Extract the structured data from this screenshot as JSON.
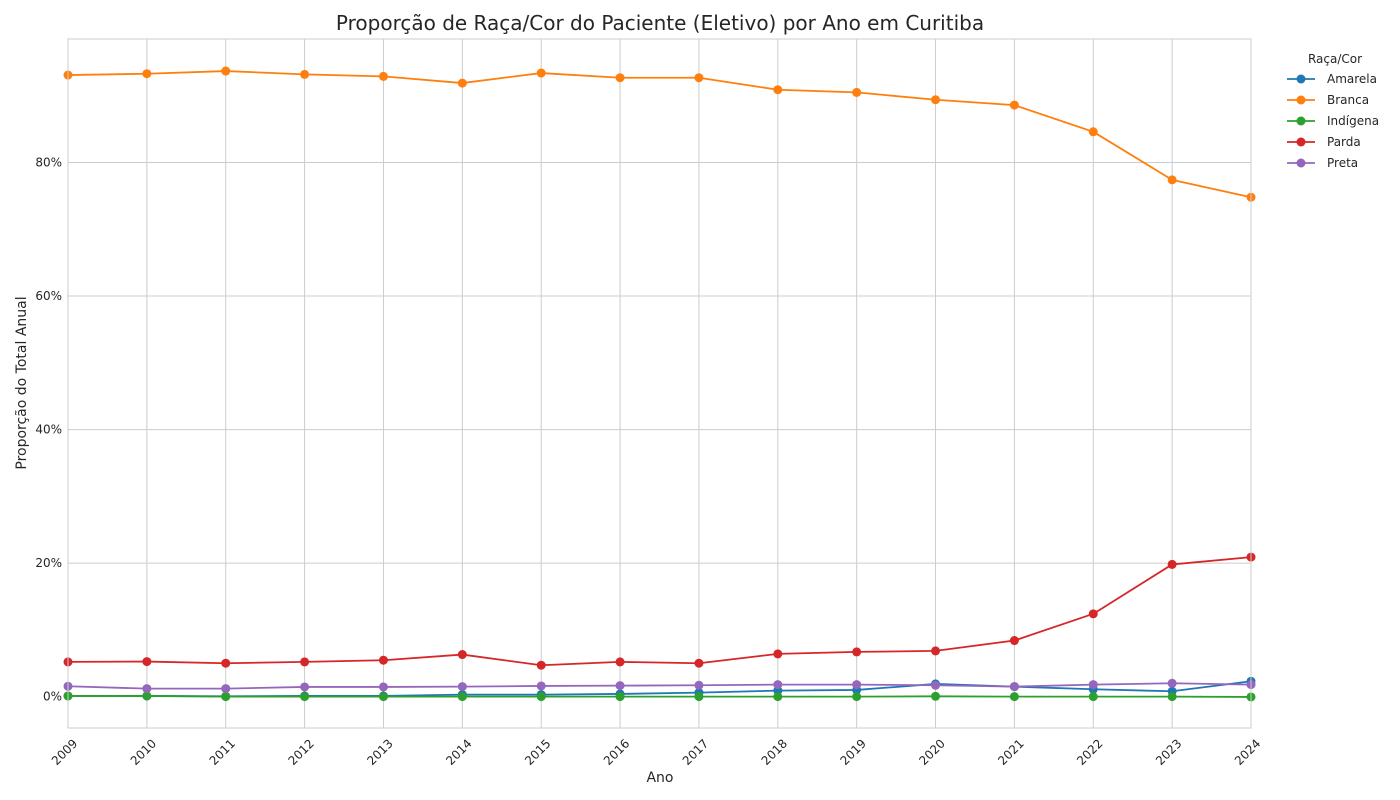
{
  "chart_data": {
    "type": "line",
    "title": "Proporção de Raça/Cor do Paciente (Eletivo) por Ano em Curitiba",
    "xlabel": "Ano",
    "ylabel": "Proporção do Total Anual",
    "x": [
      2009,
      2010,
      2011,
      2012,
      2013,
      2014,
      2015,
      2016,
      2017,
      2018,
      2019,
      2020,
      2021,
      2022,
      2023,
      2024
    ],
    "xlim": [
      2009,
      2024
    ],
    "ylim": [
      -4.7,
      98.5
    ],
    "yticks": [
      0,
      20,
      40,
      60,
      80
    ],
    "ytick_labels": [
      "0%",
      "20%",
      "40%",
      "60%",
      "80%"
    ],
    "grid": true,
    "legend": {
      "title": "Raça/Cor",
      "placement": "outside-top-right"
    },
    "series": [
      {
        "name": "Amarela",
        "color": "#1f77b4",
        "values": [
          0.1,
          0.1,
          0.05,
          0.1,
          0.1,
          0.3,
          0.3,
          0.4,
          0.6,
          0.9,
          1.0,
          1.9,
          1.5,
          1.1,
          0.8,
          2.3
        ]
      },
      {
        "name": "Branca",
        "color": "#ff7f0e",
        "values": [
          93.1,
          93.3,
          93.7,
          93.2,
          92.9,
          91.9,
          93.4,
          92.7,
          92.7,
          90.9,
          90.5,
          89.4,
          88.6,
          84.6,
          77.4,
          74.8
        ]
      },
      {
        "name": "Indígena",
        "color": "#2ca02c",
        "values": [
          0.1,
          0.1,
          0.0,
          0.0,
          0.0,
          0.0,
          0.0,
          0.0,
          0.0,
          0.0,
          0.0,
          0.05,
          0.0,
          0.0,
          0.0,
          -0.05
        ]
      },
      {
        "name": "Parda",
        "color": "#d62728",
        "values": [
          5.2,
          5.25,
          5.0,
          5.2,
          5.45,
          6.3,
          4.7,
          5.2,
          5.0,
          6.4,
          6.7,
          6.85,
          8.4,
          12.4,
          19.8,
          20.9
        ]
      },
      {
        "name": "Preta",
        "color": "#9467bd",
        "values": [
          1.55,
          1.2,
          1.2,
          1.45,
          1.45,
          1.5,
          1.6,
          1.65,
          1.7,
          1.8,
          1.8,
          1.7,
          1.5,
          1.8,
          2.0,
          1.8
        ]
      }
    ]
  }
}
